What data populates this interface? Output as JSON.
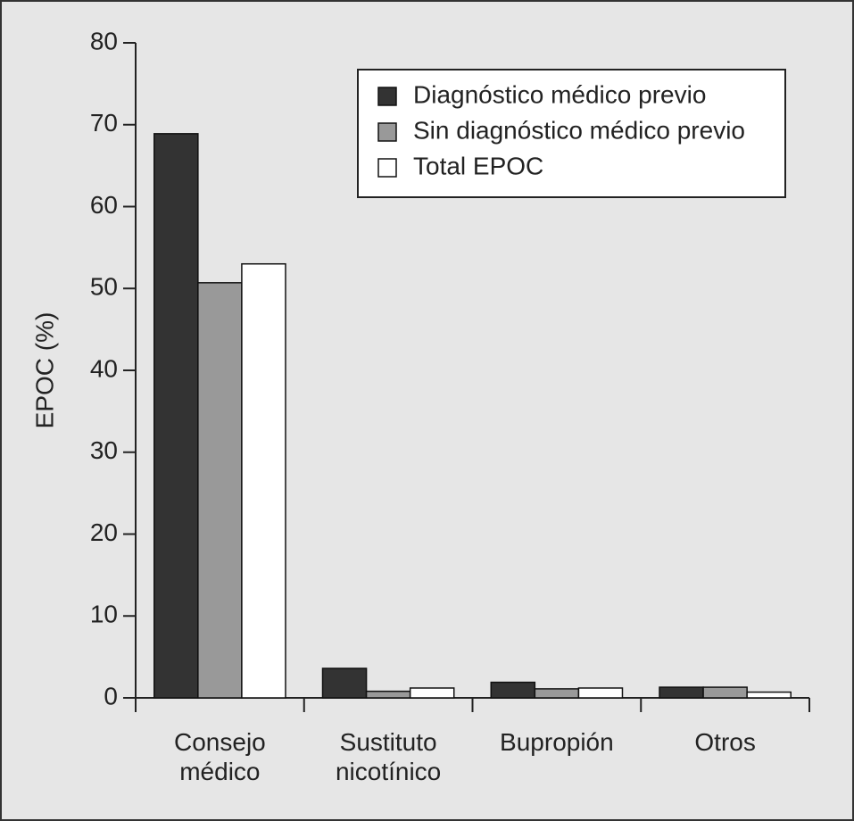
{
  "chart_data": {
    "type": "bar",
    "y_label": "EPOC (%)",
    "categories": [
      "Consejo médico",
      "Sustituto nicotínico",
      "Bupropión",
      "Otros"
    ],
    "series": [
      {
        "name": "Diagnóstico médico previo",
        "color": "#333333",
        "values": [
          68.9,
          3.6,
          1.9,
          1.3
        ]
      },
      {
        "name": "Sin diagnóstico médico previo",
        "color": "#999999",
        "values": [
          50.7,
          0.8,
          1.1,
          1.3
        ]
      },
      {
        "name": "Total EPOC",
        "color": "#ffffff",
        "values": [
          53.0,
          1.2,
          1.2,
          0.7
        ]
      }
    ],
    "ylim": [
      0,
      80
    ],
    "yticks": [
      0,
      10,
      20,
      30,
      40,
      50,
      60,
      70,
      80
    ],
    "grid": false,
    "legend": "upper right"
  }
}
